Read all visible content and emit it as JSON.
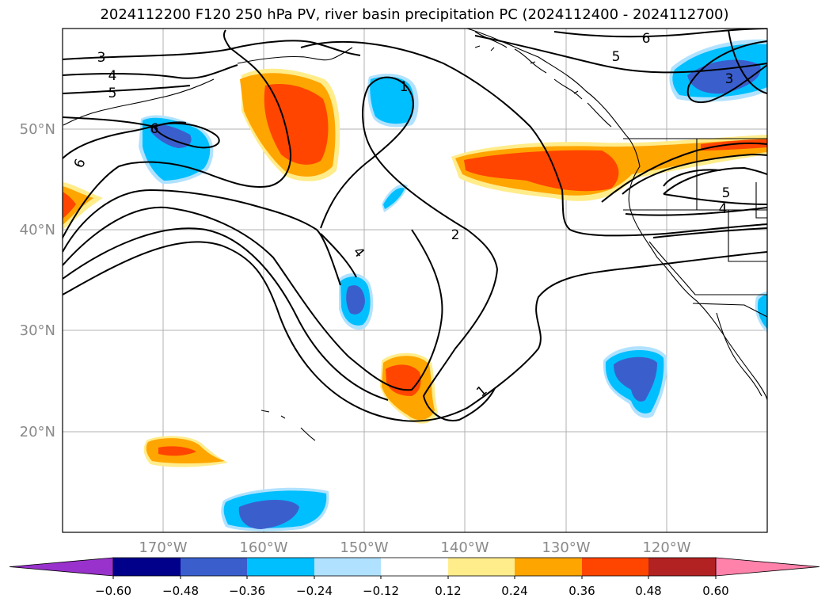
{
  "title": "2024112200 F120 250 hPa PV, river basin precipitation PC (2024112400 - 2024112700)",
  "map": {
    "longitude_labels": [
      "170°W",
      "160°W",
      "150°W",
      "140°W",
      "130°W",
      "120°W"
    ],
    "latitude_labels": [
      "50°N",
      "40°N",
      "30°N",
      "20°N"
    ],
    "contour_labels": [
      "1",
      "1",
      "2",
      "3",
      "3",
      "4",
      "4",
      "4",
      "5",
      "5",
      "5",
      "6",
      "6",
      "6"
    ]
  },
  "colorbar": {
    "tick_labels": [
      "−0.60",
      "−0.48",
      "−0.36",
      "−0.24",
      "−0.12",
      "0.12",
      "0.24",
      "0.36",
      "0.48",
      "0.60"
    ],
    "colors": [
      "#9932cc",
      "#00008b",
      "#3a5fcd",
      "#00bfff",
      "#b0e2ff",
      "#ffffff",
      "#ffec8b",
      "#ffa500",
      "#ff4500",
      "#b22222",
      "#ff82ab"
    ]
  }
}
